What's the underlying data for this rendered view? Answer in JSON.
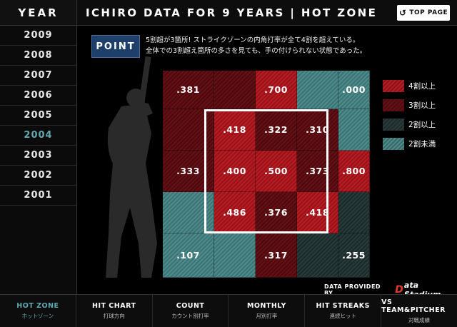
{
  "header": {
    "title": "ICHIRO DATA FOR 9 YEARS  |  HOT ZONE",
    "top_page_label": "TOP PAGE",
    "top_page_icon": "return-arrow-icon"
  },
  "years": {
    "heading": "YEAR",
    "items": [
      "2009",
      "2008",
      "2007",
      "2006",
      "2005",
      "2004",
      "2003",
      "2002",
      "2001"
    ],
    "selected": "2004",
    "active_color": "#5fa9b1"
  },
  "point": {
    "label": "POINT",
    "line1": "5割超が3箇所! ストライクゾーンの内角打率が全て4割を超えている。",
    "line2": "全体での3割超え箇所の多さを見ても、手の付けられない状態であった。"
  },
  "zone": {
    "rows": [
      [
        {
          "v": ".381",
          "c": "c30"
        },
        {
          "v": "",
          "c": "c30"
        },
        {
          "v": ".700",
          "c": "c40"
        },
        {
          "v": "",
          "c": "c00"
        },
        {
          "v": ".000",
          "c": "c00"
        }
      ],
      [
        {
          "v": "",
          "c": "c30"
        },
        {
          "v": ".418",
          "c": "c40"
        },
        {
          "v": ".322",
          "c": "c30"
        },
        {
          "v": ".310",
          "c": "c30"
        },
        {
          "v": "",
          "c": "c00"
        }
      ],
      [
        {
          "v": ".333",
          "c": "c30"
        },
        {
          "v": ".400",
          "c": "c40"
        },
        {
          "v": ".500",
          "c": "c40"
        },
        {
          "v": ".373",
          "c": "c30"
        },
        {
          "v": ".800",
          "c": "c40"
        }
      ],
      [
        {
          "v": "",
          "c": "c00"
        },
        {
          "v": ".486",
          "c": "c40"
        },
        {
          "v": ".376",
          "c": "c30"
        },
        {
          "v": ".418",
          "c": "c40"
        },
        {
          "v": "",
          "c": "c20"
        }
      ],
      [
        {
          "v": ".107",
          "c": "c00"
        },
        {
          "v": "",
          "c": "c00"
        },
        {
          "v": ".317",
          "c": "c30"
        },
        {
          "v": "",
          "c": "c20"
        },
        {
          "v": ".255",
          "c": "c20"
        }
      ]
    ]
  },
  "legend": [
    {
      "label": "4割以上",
      "color": "#b71c22"
    },
    {
      "label": "3割以上",
      "color": "#651015"
    },
    {
      "label": "2割以上",
      "color": "#283a3a"
    },
    {
      "label": "2割未満",
      "color": "#4e8b8b"
    }
  ],
  "provider": {
    "label": "DATA PROVIDED BY",
    "logo_text": "ata Stadium",
    "logo_mark": "D"
  },
  "tabs": [
    {
      "en": "HOT ZONE",
      "jp": "ホットゾーン",
      "active": true
    },
    {
      "en": "HIT CHART",
      "jp": "打球方向",
      "active": false
    },
    {
      "en": "COUNT",
      "jp": "カウント別打率",
      "active": false
    },
    {
      "en": "MONTHLY",
      "jp": "月別打率",
      "active": false
    },
    {
      "en": "HIT STREAKS",
      "jp": "連続ヒット",
      "active": false
    },
    {
      "en": "VS TEAM&PITCHER",
      "jp": "対戦成績",
      "active": false
    }
  ]
}
